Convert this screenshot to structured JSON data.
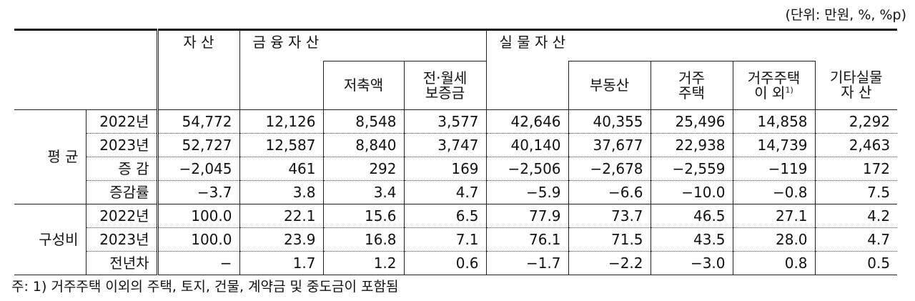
{
  "unit_note": "(단위: 만원, %, %p)",
  "table": {
    "header_top": [
      "자 산",
      "금 융 자 산",
      "실 물 자 산"
    ],
    "header_sub": [
      "저축액",
      "전·월세\n보증금",
      "부동산",
      "거주\n주택",
      "거주주택\n이  외",
      "기타실물\n자    산"
    ],
    "footnote_mark": "1)",
    "groups": [
      {
        "label": "평   균",
        "rows": [
          {
            "label": "2022년",
            "values": [
              "54,772",
              "12,126",
              "8,548",
              "3,577",
              "42,646",
              "40,355",
              "25,496",
              "14,858",
              "2,292"
            ]
          },
          {
            "label": "2023년",
            "values": [
              "52,727",
              "12,587",
              "8,840",
              "3,747",
              "40,140",
              "37,677",
              "22,938",
              "14,739",
              "2,463"
            ]
          },
          {
            "label": "증   감",
            "values": [
              "−2,045",
              "461",
              "292",
              "169",
              "−2,506",
              "−2,678",
              "−2,559",
              "−119",
              "172"
            ]
          },
          {
            "label": "증감률",
            "values": [
              "−3.7",
              "3.8",
              "3.4",
              "4.7",
              "−5.9",
              "−6.6",
              "−10.0",
              "−0.8",
              "7.5"
            ]
          }
        ]
      },
      {
        "label": "구성비",
        "rows": [
          {
            "label": "2022년",
            "values": [
              "100.0",
              "22.1",
              "15.6",
              "6.5",
              "77.9",
              "73.7",
              "46.5",
              "27.1",
              "4.2"
            ]
          },
          {
            "label": "2023년",
            "values": [
              "100.0",
              "23.9",
              "16.8",
              "7.1",
              "76.1",
              "71.5",
              "43.5",
              "28.0",
              "4.7"
            ]
          },
          {
            "label": "전년차",
            "values": [
              "−",
              "1.7",
              "1.2",
              "0.6",
              "−1.7",
              "−2.2",
              "−3.0",
              "0.8",
              "0.5"
            ]
          }
        ]
      }
    ]
  },
  "footnote": "주: 1) 거주주택 이외의 주택, 토지, 건물, 계약금 및 중도금이 포함됨"
}
